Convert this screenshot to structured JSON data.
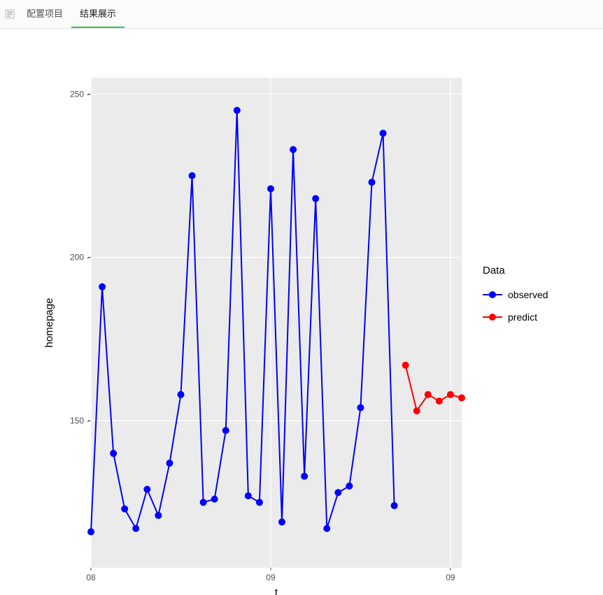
{
  "tabs": {
    "tab1_label": "配置项目",
    "tab2_label": "结果展示"
  },
  "chart": {
    "type": "line",
    "background_color": "#ebebeb",
    "panel_border_color": "#ffffff",
    "grid_color": "#ffffff",
    "xlabel": "t",
    "ylabel": "homepage",
    "label_fontsize": 15,
    "tick_fontsize": 12,
    "tick_color": "#4d4d4d",
    "axis_label_color": "#000000",
    "legend_title": "Data",
    "legend_title_fontsize": 15,
    "legend_text_fontsize": 14,
    "line_width": 2,
    "marker_radius": 5,
    "ylim": [
      105,
      255
    ],
    "yticks": [
      150,
      200,
      250
    ],
    "xlim": [
      0,
      33
    ],
    "xticks": [
      {
        "pos": 0,
        "label": "08"
      },
      {
        "pos": 16,
        "label": "09"
      },
      {
        "pos": 32,
        "label": "09"
      }
    ],
    "series": [
      {
        "name": "observed",
        "color": "#0000ff",
        "data": [
          {
            "x": 0,
            "y": 116
          },
          {
            "x": 1,
            "y": 191
          },
          {
            "x": 2,
            "y": 140
          },
          {
            "x": 3,
            "y": 123
          },
          {
            "x": 4,
            "y": 117
          },
          {
            "x": 5,
            "y": 129
          },
          {
            "x": 6,
            "y": 121
          },
          {
            "x": 7,
            "y": 137
          },
          {
            "x": 8,
            "y": 158
          },
          {
            "x": 9,
            "y": 225
          },
          {
            "x": 10,
            "y": 125
          },
          {
            "x": 11,
            "y": 126
          },
          {
            "x": 12,
            "y": 147
          },
          {
            "x": 13,
            "y": 245
          },
          {
            "x": 14,
            "y": 127
          },
          {
            "x": 15,
            "y": 125
          },
          {
            "x": 16,
            "y": 221
          },
          {
            "x": 17,
            "y": 119
          },
          {
            "x": 18,
            "y": 233
          },
          {
            "x": 19,
            "y": 133
          },
          {
            "x": 20,
            "y": 218
          },
          {
            "x": 21,
            "y": 117
          },
          {
            "x": 22,
            "y": 128
          },
          {
            "x": 23,
            "y": 130
          },
          {
            "x": 24,
            "y": 154
          },
          {
            "x": 25,
            "y": 223
          },
          {
            "x": 26,
            "y": 238
          },
          {
            "x": 27,
            "y": 124
          }
        ]
      },
      {
        "name": "predict",
        "color": "#ff0000",
        "data": [
          {
            "x": 28,
            "y": 167
          },
          {
            "x": 29,
            "y": 153
          },
          {
            "x": 30,
            "y": 158
          },
          {
            "x": 31,
            "y": 156
          },
          {
            "x": 32,
            "y": 158
          },
          {
            "x": 33,
            "y": 157
          }
        ]
      }
    ]
  }
}
